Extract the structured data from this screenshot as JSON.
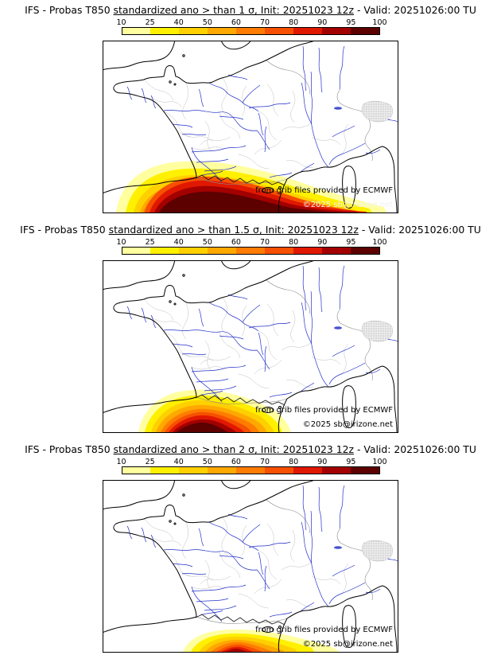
{
  "colorbar": {
    "ticks": [
      "10",
      "25",
      "40",
      "50",
      "60",
      "70",
      "80",
      "90",
      "95",
      "100"
    ],
    "colors": [
      "#FFFFA0",
      "#FFF000",
      "#FFD000",
      "#FFA800",
      "#FF7C00",
      "#F65000",
      "#E01800",
      "#A30000",
      "#5C0000"
    ]
  },
  "map_colors": {
    "coastline": "#000000",
    "river": "#2431c9",
    "admin_border": "#ababab",
    "country_border": "#8a8a8a",
    "terrain_edge": "#999999",
    "ridge": "#1a1a1a"
  },
  "attribution": {
    "source": "from grib files provided by ECMWF",
    "copyright": "©2025 sb@irizone.net"
  },
  "panels": [
    {
      "title_prefix": "IFS - Probas T850  ",
      "title_main": "standardized ano > than 1 σ, Init: 20251023 12z",
      "title_suffix": " - Valid: 20251026:00 TU"
    },
    {
      "title_prefix": "IFS - Probas T850  ",
      "title_main": "standardized ano > than 1.5 σ, Init: 20251023 12z",
      "title_suffix": " - Valid: 20251026:00 TU"
    },
    {
      "title_prefix": "IFS - Probas T850  ",
      "title_main": "standardized ano > than 2 σ, Init: 20251023 12z",
      "title_suffix": " - Valid: 20251026:00 TU"
    }
  ]
}
